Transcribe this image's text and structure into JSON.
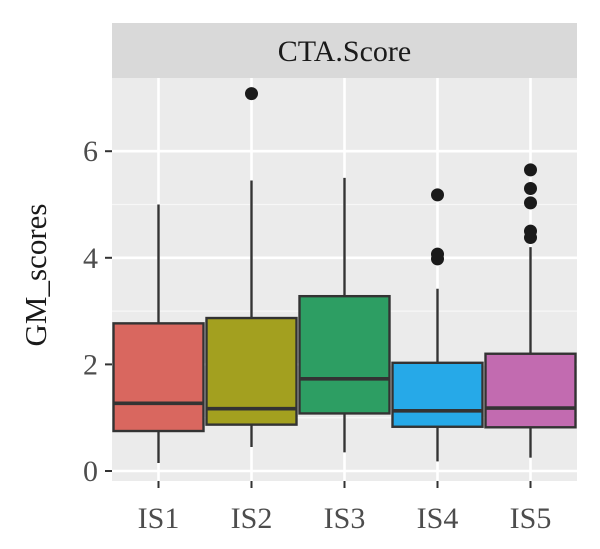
{
  "chart_data": {
    "type": "box",
    "facet_title": "CTA.Score",
    "ylabel": "GM_scores",
    "xlabel": "",
    "ylim": [
      -0.2,
      7.35
    ],
    "yticks": [
      0,
      2,
      4,
      6
    ],
    "ytick_labels": [
      "0",
      "2",
      "4",
      "6"
    ],
    "grid": true,
    "legend": "none",
    "categories": [
      "IS1",
      "IS2",
      "IS3",
      "IS4",
      "IS5"
    ],
    "boxes": [
      {
        "name": "IS1",
        "whisker_low": 0.15,
        "q1": 0.75,
        "median": 1.27,
        "q3": 2.77,
        "whisker_high": 5.0,
        "outliers": [],
        "color": "#d9675f"
      },
      {
        "name": "IS2",
        "whisker_low": 0.45,
        "q1": 0.87,
        "median": 1.17,
        "q3": 2.87,
        "whisker_high": 5.45,
        "outliers": [
          7.08
        ],
        "color": "#a3a01f"
      },
      {
        "name": "IS3",
        "whisker_low": 0.35,
        "q1": 1.08,
        "median": 1.73,
        "q3": 3.28,
        "whisker_high": 5.5,
        "outliers": [],
        "color": "#2d9e63"
      },
      {
        "name": "IS4",
        "whisker_low": 0.18,
        "q1": 0.83,
        "median": 1.13,
        "q3": 2.03,
        "whisker_high": 3.42,
        "outliers": [
          3.98,
          4.07,
          5.18
        ],
        "color": "#26a9e8"
      },
      {
        "name": "IS5",
        "whisker_low": 0.25,
        "q1": 0.82,
        "median": 1.18,
        "q3": 2.2,
        "whisker_high": 4.2,
        "outliers": [
          4.38,
          4.5,
          5.03,
          5.3,
          5.65
        ],
        "color": "#c26bb0"
      }
    ]
  }
}
